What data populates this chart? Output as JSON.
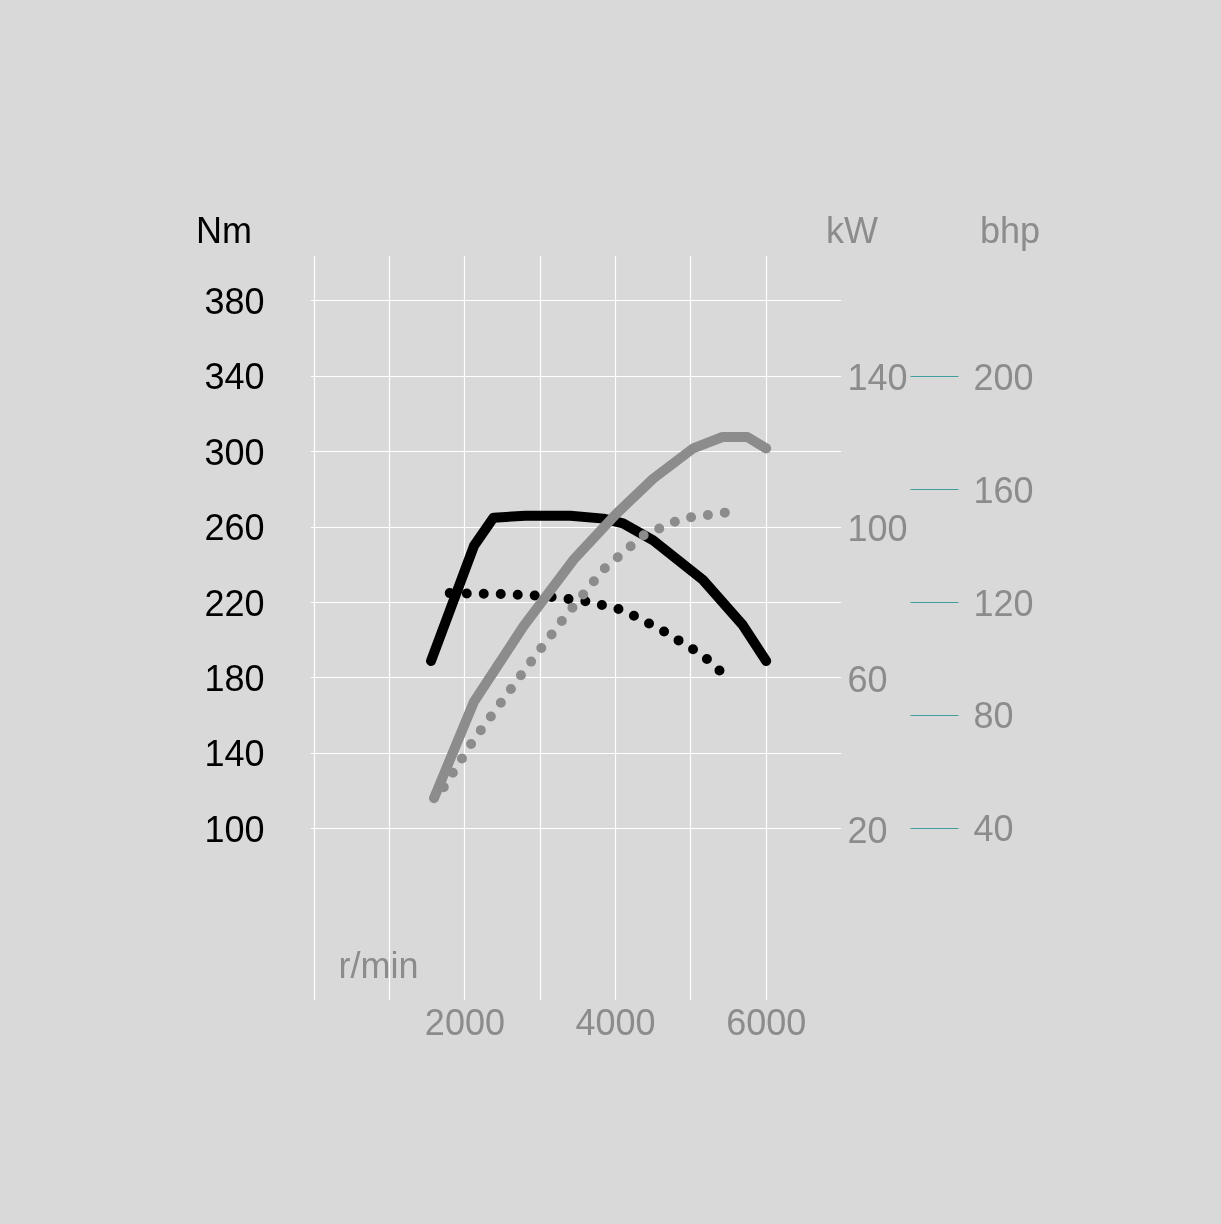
{
  "chart_data": {
    "type": "line",
    "xlabel": "r/min",
    "ylabel": "Nm",
    "y2label": "kW",
    "y3label": "bhp",
    "xlim": [
      -50,
      7000
    ],
    "ylim": [
      9,
      404
    ],
    "y2lim": [
      -25,
      172
    ],
    "y3lim": [
      -21,
      243
    ],
    "xticks": [
      {
        "value": 0,
        "label": null
      },
      {
        "value": 1000,
        "label": null
      },
      2000,
      {
        "value": 3000,
        "label": null
      },
      4000,
      {
        "value": 5000,
        "label": null
      },
      6000
    ],
    "yticks": [
      100,
      140,
      180,
      220,
      260,
      300,
      340,
      380
    ],
    "y2ticks": [
      20,
      60,
      100,
      140
    ],
    "y3ticks": [
      40,
      80,
      120,
      160,
      200
    ],
    "grid": true,
    "series": [
      {
        "color": "#000000",
        "line_style": "solid",
        "x": [
          1550,
          2120,
          2380,
          2800,
          3400,
          3840,
          4100,
          4500,
          5160,
          5690,
          6000
        ],
        "values": [
          189,
          250,
          265,
          266,
          266,
          264.5,
          262,
          253,
          232,
          208,
          189
        ]
      },
      {
        "color": "#000000",
        "line_style": "dotted",
        "x": [
          1790,
          2500,
          3040,
          3570,
          4100,
          4630,
          5160,
          5380
        ],
        "values": [
          225,
          224.5,
          223.5,
          221,
          216,
          205,
          192,
          184
        ]
      },
      {
        "color": "#8c8c8c",
        "line_style": "solid",
        "axis": "y2",
        "x": [
          1590,
          2120,
          2780,
          3440,
          4000,
          4500,
          5030,
          5420,
          5750,
          6000
        ],
        "values": [
          28.5,
          54,
          74,
          91.5,
          103.5,
          113,
          121,
          124,
          124,
          121
        ]
      },
      {
        "color": "#8c8c8c",
        "line_style": "dotted",
        "axis": "y2",
        "x": [
          1610,
          2120,
          2780,
          3310,
          3840,
          4370,
          4890,
          5450
        ],
        "values": [
          28,
          44,
          62,
          76,
          89,
          98,
          102.5,
          104
        ]
      }
    ]
  }
}
